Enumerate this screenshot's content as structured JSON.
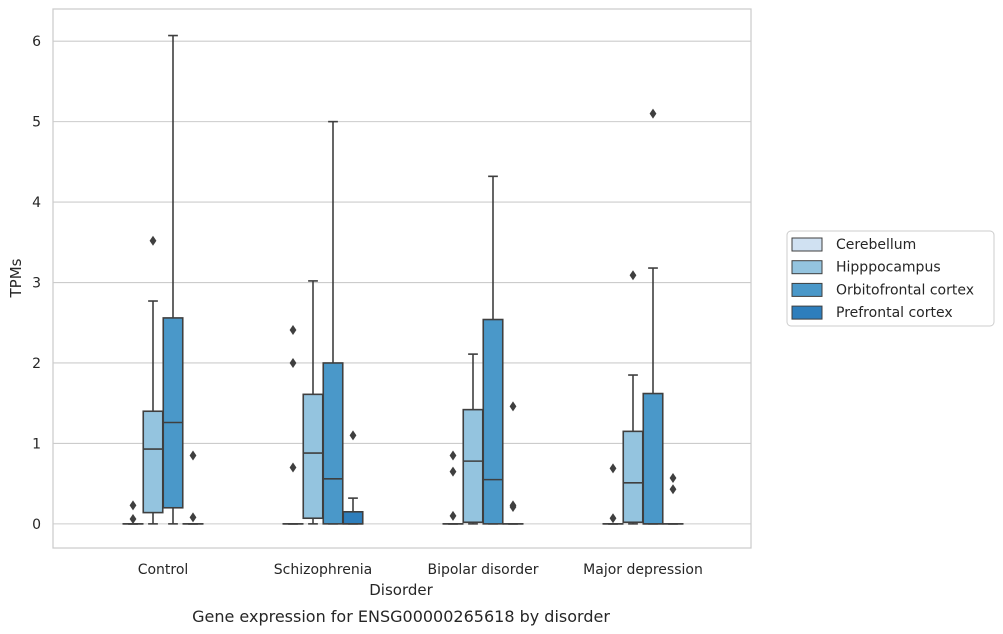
{
  "caption": "Gene expression for ENSG00000265618 by disorder",
  "chart_data": {
    "type": "box",
    "xlabel": "Disorder",
    "ylabel": "TPMs",
    "ylim": [
      -0.3,
      6.4
    ],
    "yticks": [
      0,
      1,
      2,
      3,
      4,
      5,
      6
    ],
    "grid": "horizontal",
    "legend_placement": "right",
    "categories": [
      "Control",
      "Schizophrenia",
      "Bipolar disorder",
      "Major depression"
    ],
    "series": [
      {
        "name": "Cerebellum",
        "color": "#d0e1f2",
        "boxes": [
          {
            "category": "Control",
            "q1": 0,
            "median": 0,
            "q3": 0,
            "whisker_low": 0,
            "whisker_high": 0,
            "outliers": [
              0.06,
              0.23
            ]
          },
          {
            "category": "Schizophrenia",
            "q1": 0,
            "median": 0,
            "q3": 0,
            "whisker_low": 0,
            "whisker_high": 0,
            "outliers": [
              0.7,
              2.0,
              2.41
            ]
          },
          {
            "category": "Bipolar disorder",
            "q1": 0,
            "median": 0,
            "q3": 0,
            "whisker_low": 0,
            "whisker_high": 0,
            "outliers": [
              0.1,
              0.65,
              0.85
            ]
          },
          {
            "category": "Major depression",
            "q1": 0,
            "median": 0,
            "q3": 0,
            "whisker_low": 0,
            "whisker_high": 0,
            "outliers": [
              0.07,
              0.69
            ]
          }
        ]
      },
      {
        "name": "Hipppocampus",
        "color": "#94c4df",
        "boxes": [
          {
            "category": "Control",
            "q1": 0.14,
            "median": 0.93,
            "q3": 1.4,
            "whisker_low": 0,
            "whisker_high": 2.77,
            "outliers": [
              3.52
            ]
          },
          {
            "category": "Schizophrenia",
            "q1": 0.07,
            "median": 0.88,
            "q3": 1.61,
            "whisker_low": 0,
            "whisker_high": 3.02,
            "outliers": []
          },
          {
            "category": "Bipolar disorder",
            "q1": 0.02,
            "median": 0.78,
            "q3": 1.42,
            "whisker_low": 0,
            "whisker_high": 2.11,
            "outliers": []
          },
          {
            "category": "Major depression",
            "q1": 0.02,
            "median": 0.51,
            "q3": 1.15,
            "whisker_low": 0,
            "whisker_high": 1.85,
            "outliers": [
              3.09
            ]
          }
        ]
      },
      {
        "name": "Orbitofrontal cortex",
        "color": "#4a98c9",
        "boxes": [
          {
            "category": "Control",
            "q1": 0.2,
            "median": 1.26,
            "q3": 2.56,
            "whisker_low": 0,
            "whisker_high": 6.07,
            "outliers": []
          },
          {
            "category": "Schizophrenia",
            "q1": 0,
            "median": 0.56,
            "q3": 2.0,
            "whisker_low": 0,
            "whisker_high": 5.0,
            "outliers": []
          },
          {
            "category": "Bipolar disorder",
            "q1": 0,
            "median": 0.55,
            "q3": 2.54,
            "whisker_low": 0,
            "whisker_high": 4.32,
            "outliers": []
          },
          {
            "category": "Major depression",
            "q1": 0,
            "median": 0,
            "q3": 1.62,
            "whisker_low": 0,
            "whisker_high": 3.18,
            "outliers": [
              5.1
            ]
          }
        ]
      },
      {
        "name": "Prefrontal cortex",
        "color": "#2e7ebc",
        "boxes": [
          {
            "category": "Control",
            "q1": 0,
            "median": 0,
            "q3": 0,
            "whisker_low": 0,
            "whisker_high": 0,
            "outliers": [
              0.08,
              0.85
            ]
          },
          {
            "category": "Schizophrenia",
            "q1": 0,
            "median": 0,
            "q3": 0.15,
            "whisker_low": 0,
            "whisker_high": 0.32,
            "outliers": [
              1.1
            ]
          },
          {
            "category": "Bipolar disorder",
            "q1": 0,
            "median": 0,
            "q3": 0,
            "whisker_low": 0,
            "whisker_high": 0,
            "outliers": [
              0.21,
              0.23,
              1.46
            ]
          },
          {
            "category": "Major depression",
            "q1": 0,
            "median": 0,
            "q3": 0,
            "whisker_low": 0,
            "whisker_high": 0,
            "outliers": [
              0.43,
              0.57
            ]
          }
        ]
      }
    ]
  }
}
